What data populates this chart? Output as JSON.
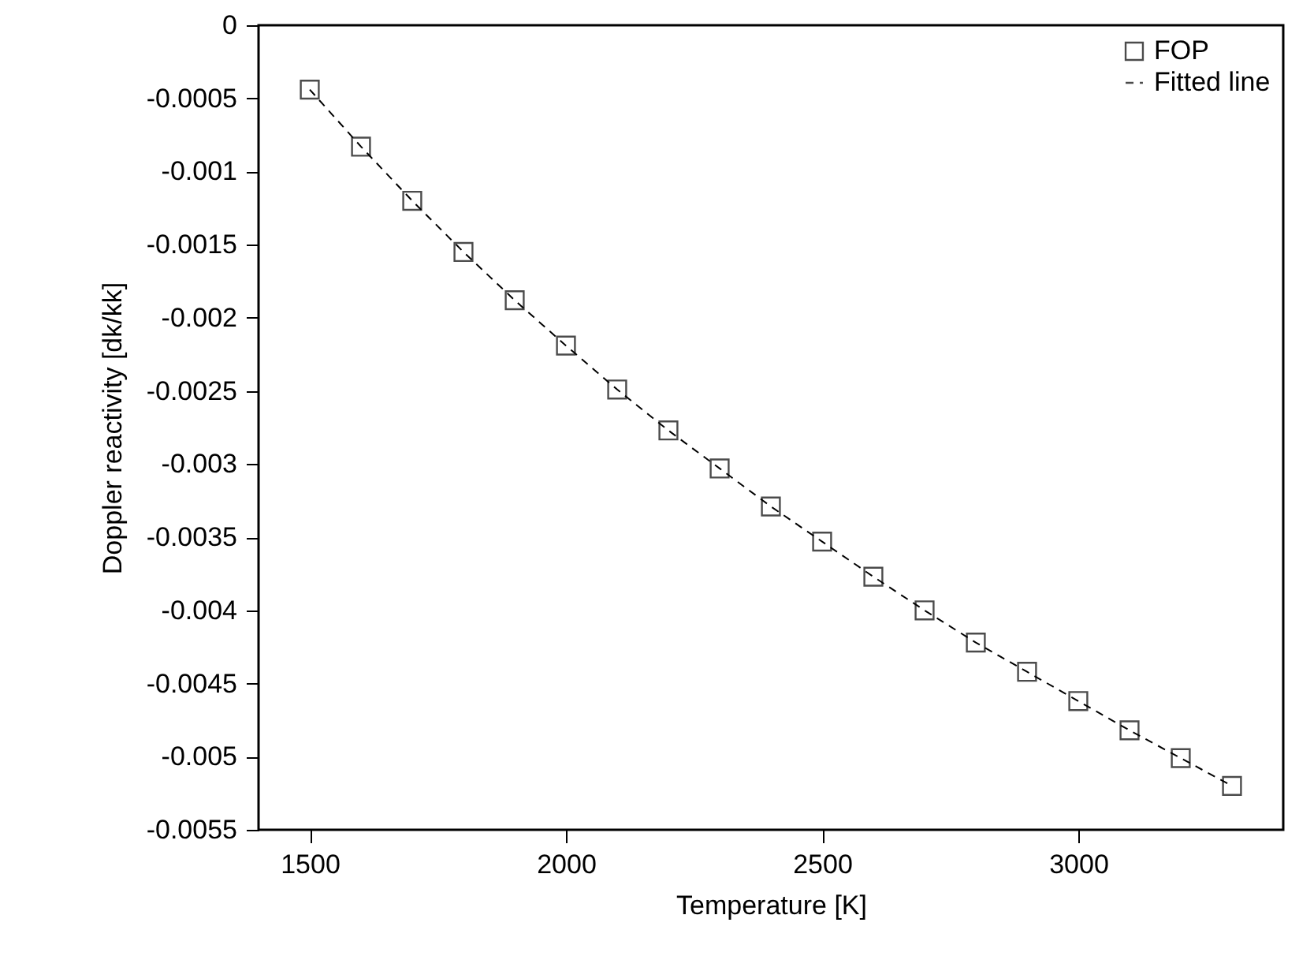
{
  "chart_data": {
    "type": "scatter",
    "xlabel": "Temperature [K]",
    "ylabel": "Doppler reactivity [dk/kk]",
    "x": [
      1500,
      1600,
      1700,
      1800,
      1900,
      2000,
      2100,
      2200,
      2300,
      2400,
      2500,
      2600,
      2700,
      2800,
      2900,
      3000,
      3100,
      3200,
      3300
    ],
    "series": [
      {
        "name": "FOP",
        "marker": "square",
        "color": "#000000",
        "values": [
          -0.00044,
          -0.00083,
          -0.0012,
          -0.00155,
          -0.00188,
          -0.00219,
          -0.00249,
          -0.00277,
          -0.00303,
          -0.00329,
          -0.00353,
          -0.00377,
          -0.004,
          -0.00422,
          -0.00442,
          -0.00462,
          -0.00482,
          -0.00501,
          -0.0052
        ]
      },
      {
        "name": "Fitted line",
        "type": "line",
        "line_style": "dashed",
        "color": "#000000",
        "values": [
          -0.00044,
          -0.00083,
          -0.0012,
          -0.00155,
          -0.00188,
          -0.00219,
          -0.00249,
          -0.00277,
          -0.00303,
          -0.00329,
          -0.00353,
          -0.00377,
          -0.004,
          -0.00422,
          -0.00442,
          -0.00462,
          -0.00482,
          -0.00501,
          -0.0052
        ]
      }
    ],
    "xlim": [
      1400,
      3400
    ],
    "xticks": [
      1500,
      2000,
      2500,
      3000
    ],
    "ylim": [
      -0.0055,
      0
    ],
    "yticks": [
      0,
      -0.0005,
      -0.001,
      -0.0015,
      -0.002,
      -0.0025,
      -0.003,
      -0.0035,
      -0.004,
      -0.0045,
      -0.005,
      -0.0055
    ],
    "grid": false,
    "legend": "top right"
  }
}
